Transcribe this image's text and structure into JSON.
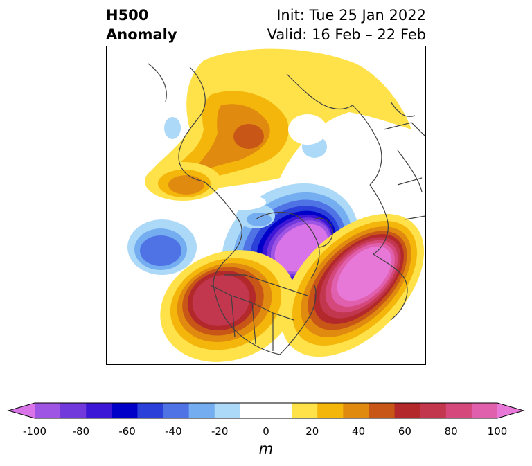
{
  "header": {
    "title_line1": "H500",
    "title_line2": "Anomaly",
    "init_text": "Init: Tue 25 Jan 2022",
    "valid_text": "Valid: 16 Feb – 22 Feb"
  },
  "colorbar": {
    "unit": "m",
    "min": -100,
    "max": 100,
    "step": 10,
    "tick_labels": [
      "-100",
      "-80",
      "-60",
      "-40",
      "-20",
      "0",
      "20",
      "40",
      "60",
      "80",
      "100"
    ],
    "colors": [
      "#d873e8",
      "#9f55e3",
      "#7138dc",
      "#3c17d6",
      "#0000c9",
      "#2b3fd9",
      "#4f73e5",
      "#75aef0",
      "#acd9f7",
      "#ffffff",
      "#ffffff",
      "#ffe24a",
      "#f4b60a",
      "#e08a10",
      "#c85616",
      "#b3282a",
      "#c2364e",
      "#d4487c",
      "#e060ae",
      "#e878d8"
    ]
  }
}
